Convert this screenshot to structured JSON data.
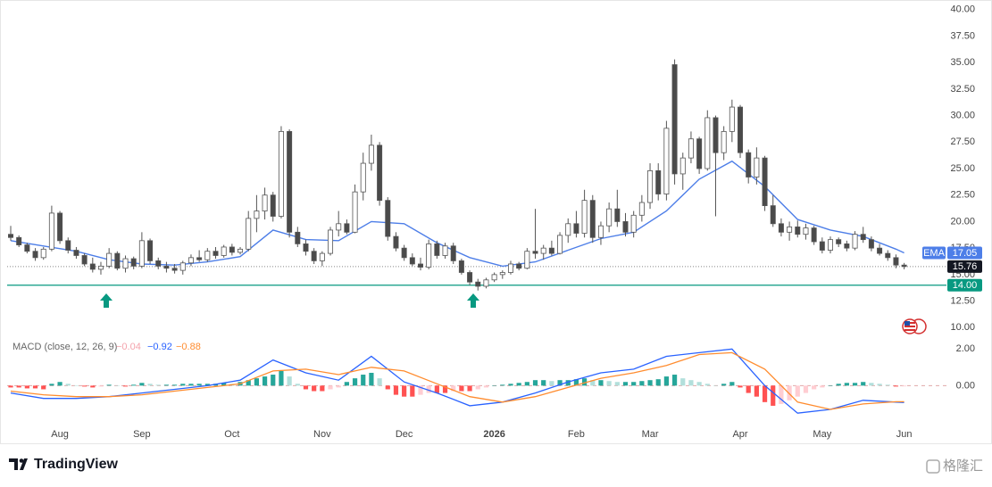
{
  "chart_data": {
    "type": "candlestick",
    "categories": [
      null,
      null,
      null,
      null,
      null,
      null,
      "Aug",
      null,
      null,
      null,
      null,
      null,
      null,
      null,
      null,
      null,
      "Sep",
      null,
      null,
      null,
      null,
      null,
      null,
      null,
      null,
      null,
      null,
      "Oct",
      null,
      null,
      null,
      null,
      null,
      null,
      null,
      null,
      null,
      null,
      "Nov",
      null,
      null,
      null,
      null,
      null,
      null,
      null,
      null,
      null,
      "Dec",
      null,
      null,
      null,
      null,
      null,
      null,
      null,
      null,
      null,
      null,
      "2026",
      null,
      null,
      null,
      null,
      null,
      null,
      null,
      null,
      null,
      "Feb",
      null,
      null,
      null,
      null,
      null,
      null,
      null,
      null,
      "Mar",
      null,
      null,
      null,
      null,
      null,
      null,
      null,
      null,
      null,
      null,
      "Apr",
      null,
      null,
      null,
      null,
      null,
      null,
      null,
      null,
      null,
      "May",
      null,
      null,
      null,
      null,
      null,
      null,
      null,
      null,
      null,
      "Jun"
    ],
    "ohlc": [
      [
        18.8,
        19.6,
        18.2,
        18.5
      ],
      [
        18.5,
        18.7,
        17.6,
        17.8
      ],
      [
        17.8,
        18.0,
        17.0,
        17.2
      ],
      [
        17.2,
        17.5,
        16.3,
        16.6
      ],
      [
        16.6,
        17.6,
        16.4,
        17.4
      ],
      [
        17.4,
        21.5,
        17.2,
        20.8
      ],
      [
        20.8,
        21.0,
        17.9,
        18.2
      ],
      [
        18.2,
        18.5,
        17.0,
        17.3
      ],
      [
        17.3,
        17.6,
        16.5,
        16.8
      ],
      [
        16.8,
        17.0,
        15.8,
        16.0
      ],
      [
        16.0,
        16.6,
        15.2,
        15.5
      ],
      [
        15.5,
        16.2,
        15.0,
        15.8
      ],
      [
        15.8,
        17.5,
        15.6,
        17.0
      ],
      [
        17.0,
        17.2,
        15.4,
        15.6
      ],
      [
        15.6,
        16.8,
        15.2,
        16.5
      ],
      [
        16.5,
        16.7,
        15.5,
        15.8
      ],
      [
        15.8,
        19.0,
        15.6,
        18.2
      ],
      [
        18.2,
        18.4,
        16.0,
        16.3
      ],
      [
        16.3,
        16.6,
        15.5,
        15.8
      ],
      [
        15.8,
        16.2,
        15.2,
        15.6
      ],
      [
        15.6,
        16.0,
        15.1,
        15.4
      ],
      [
        15.4,
        16.3,
        15.0,
        16.1
      ],
      [
        16.1,
        16.9,
        15.8,
        16.6
      ],
      [
        16.6,
        17.3,
        16.2,
        16.4
      ],
      [
        16.4,
        17.5,
        16.2,
        17.2
      ],
      [
        17.2,
        17.6,
        16.5,
        16.8
      ],
      [
        16.8,
        17.8,
        16.6,
        17.6
      ],
      [
        17.6,
        17.9,
        16.8,
        17.1
      ],
      [
        17.1,
        17.6,
        16.9,
        17.4
      ],
      [
        17.4,
        21.0,
        17.2,
        20.3
      ],
      [
        20.3,
        22.5,
        19.0,
        21.0
      ],
      [
        21.0,
        23.2,
        20.2,
        22.5
      ],
      [
        22.5,
        22.8,
        20.0,
        20.5
      ],
      [
        20.5,
        29.0,
        20.3,
        28.5
      ],
      [
        28.5,
        28.7,
        18.5,
        19.0
      ],
      [
        19.0,
        19.5,
        17.6,
        17.9
      ],
      [
        17.9,
        18.3,
        16.8,
        17.2
      ],
      [
        17.2,
        17.5,
        16.0,
        16.3
      ],
      [
        16.3,
        17.2,
        15.8,
        17.0
      ],
      [
        17.0,
        19.5,
        16.8,
        19.2
      ],
      [
        19.2,
        21.0,
        18.6,
        19.8
      ],
      [
        19.8,
        20.2,
        18.8,
        19.0
      ],
      [
        19.0,
        23.5,
        18.9,
        22.8
      ],
      [
        22.8,
        26.5,
        22.0,
        25.5
      ],
      [
        25.5,
        28.2,
        24.8,
        27.2
      ],
      [
        27.2,
        27.5,
        21.5,
        22.0
      ],
      [
        22.0,
        22.3,
        18.2,
        18.6
      ],
      [
        18.6,
        19.0,
        17.2,
        17.5
      ],
      [
        17.5,
        17.8,
        16.3,
        16.6
      ],
      [
        16.6,
        17.0,
        15.8,
        16.0
      ],
      [
        16.0,
        16.6,
        15.4,
        15.7
      ],
      [
        15.7,
        18.3,
        15.5,
        17.9
      ],
      [
        17.9,
        18.2,
        16.5,
        16.8
      ],
      [
        16.8,
        18.0,
        16.5,
        17.7
      ],
      [
        17.7,
        18.0,
        16.0,
        16.3
      ],
      [
        16.3,
        16.5,
        15.0,
        15.2
      ],
      [
        15.2,
        15.4,
        14.0,
        14.3
      ],
      [
        14.3,
        14.6,
        13.5,
        13.9
      ],
      [
        13.9,
        14.7,
        13.7,
        14.5
      ],
      [
        14.5,
        15.2,
        14.3,
        15.0
      ],
      [
        15.0,
        15.4,
        14.6,
        15.2
      ],
      [
        15.2,
        16.3,
        15.0,
        16.0
      ],
      [
        16.0,
        16.2,
        15.4,
        15.6
      ],
      [
        15.6,
        17.5,
        15.5,
        17.2
      ],
      [
        17.2,
        21.2,
        16.5,
        17.0
      ],
      [
        17.0,
        17.8,
        16.4,
        17.5
      ],
      [
        17.5,
        18.2,
        16.8,
        17.0
      ],
      [
        17.0,
        19.0,
        16.9,
        18.7
      ],
      [
        18.7,
        20.3,
        18.0,
        19.8
      ],
      [
        19.8,
        21.0,
        18.5,
        18.9
      ],
      [
        18.9,
        23.0,
        18.5,
        22.0
      ],
      [
        22.0,
        22.5,
        18.0,
        18.5
      ],
      [
        18.5,
        20.0,
        17.8,
        19.6
      ],
      [
        19.6,
        21.8,
        19.0,
        21.2
      ],
      [
        21.2,
        23.0,
        19.5,
        20.0
      ],
      [
        20.0,
        20.8,
        18.6,
        19.0
      ],
      [
        19.0,
        21.0,
        18.5,
        20.6
      ],
      [
        20.6,
        22.5,
        20.0,
        21.8
      ],
      [
        21.8,
        25.5,
        21.2,
        24.8
      ],
      [
        24.8,
        25.5,
        22.0,
        22.6
      ],
      [
        22.6,
        29.5,
        22.0,
        28.8
      ],
      [
        34.8,
        35.3,
        23.5,
        24.5
      ],
      [
        24.5,
        26.5,
        23.0,
        26.0
      ],
      [
        26.0,
        28.5,
        25.5,
        27.8
      ],
      [
        27.8,
        28.0,
        24.5,
        25.0
      ],
      [
        25.0,
        30.5,
        24.8,
        29.8
      ],
      [
        29.8,
        30.0,
        20.5,
        26.5
      ],
      [
        26.5,
        29.0,
        25.8,
        28.5
      ],
      [
        28.5,
        31.5,
        27.5,
        30.8
      ],
      [
        30.8,
        31.0,
        26.0,
        26.5
      ],
      [
        26.5,
        26.8,
        23.6,
        24.2
      ],
      [
        24.2,
        27.0,
        23.5,
        26.0
      ],
      [
        26.0,
        26.2,
        21.0,
        21.5
      ],
      [
        21.5,
        22.5,
        19.5,
        19.8
      ],
      [
        19.8,
        20.3,
        18.6,
        19.0
      ],
      [
        19.0,
        20.0,
        18.2,
        19.5
      ],
      [
        19.5,
        20.1,
        18.5,
        18.8
      ],
      [
        18.8,
        19.8,
        18.3,
        19.4
      ],
      [
        19.4,
        19.6,
        17.8,
        18.1
      ],
      [
        18.1,
        18.5,
        17.0,
        17.3
      ],
      [
        17.3,
        18.6,
        17.0,
        18.3
      ],
      [
        18.3,
        18.5,
        17.6,
        17.9
      ],
      [
        17.9,
        18.2,
        17.2,
        17.5
      ],
      [
        17.5,
        19.1,
        17.3,
        18.8
      ],
      [
        18.8,
        19.5,
        18.0,
        18.3
      ],
      [
        18.3,
        18.6,
        17.2,
        17.5
      ],
      [
        17.5,
        17.9,
        16.8,
        17.0
      ],
      [
        17.0,
        17.3,
        16.3,
        16.6
      ],
      [
        16.6,
        16.9,
        15.6,
        15.9
      ],
      [
        15.9,
        16.1,
        15.5,
        15.76
      ]
    ],
    "up_color": "#ffffff",
    "down_color": "#4a4a4a",
    "wick_color": "#555555",
    "ylim": [
      9.1,
      40.9
    ],
    "yticks": [
      {
        "value": 10,
        "label": "10.00"
      },
      {
        "value": 12.5,
        "label": "12.50"
      },
      {
        "value": 15,
        "label": "15.00"
      },
      {
        "value": 17.5,
        "label": "17.50"
      },
      {
        "value": 20,
        "label": "20.00"
      },
      {
        "value": 22.5,
        "label": "22.50"
      },
      {
        "value": 25,
        "label": "25.00"
      },
      {
        "value": 27.5,
        "label": "27.50"
      },
      {
        "value": 30,
        "label": "30.00"
      },
      {
        "value": 32.5,
        "label": "32.50"
      },
      {
        "value": 35,
        "label": "35.00"
      },
      {
        "value": 37.5,
        "label": "37.50"
      },
      {
        "value": 40,
        "label": "40.00"
      }
    ],
    "ema": {
      "name": "EMA",
      "color": "#4d7ee8",
      "x": [
        0,
        4,
        8,
        12,
        16,
        20,
        24,
        28,
        32,
        36,
        40,
        44,
        48,
        52,
        56,
        60,
        64,
        68,
        72,
        76,
        80,
        84,
        88,
        92,
        96,
        100,
        104,
        108,
        109
      ],
      "values": [
        18.2,
        17.7,
        17.2,
        16.4,
        16.0,
        15.9,
        16.2,
        16.7,
        19.2,
        18.3,
        18.2,
        20.0,
        19.8,
        18.0,
        16.6,
        15.8,
        16.2,
        17.3,
        18.4,
        19.0,
        21.0,
        24.0,
        25.7,
        23.3,
        20.2,
        19.2,
        18.6,
        17.4,
        17.05
      ]
    },
    "hline": {
      "value": 14,
      "label": "14.00",
      "color": "#089981"
    },
    "macd": {
      "title": "MACD (close, 12, 26, 9)",
      "ylim": [
        -3.1,
        2.55
      ],
      "yticks": [
        {
          "value": 0,
          "label": "0.00"
        },
        {
          "value": 2,
          "label": "2.00"
        }
      ],
      "histogram": {
        "values": [
          -0.1,
          -0.1,
          -0.15,
          -0.15,
          -0.2,
          0.1,
          0.2,
          0.1,
          0.0,
          -0.05,
          -0.1,
          -0.05,
          0.05,
          0.0,
          -0.05,
          0.05,
          0.15,
          0.1,
          0.05,
          0.05,
          0.05,
          0.1,
          0.1,
          0.1,
          0.1,
          0.1,
          0.15,
          0.1,
          0.2,
          0.3,
          0.4,
          0.5,
          0.6,
          0.8,
          0.5,
          0.1,
          -0.2,
          -0.3,
          -0.3,
          -0.2,
          -0.1,
          0.2,
          0.4,
          0.6,
          0.7,
          0.4,
          -0.2,
          -0.5,
          -0.6,
          -0.6,
          -0.5,
          -0.4,
          -0.4,
          -0.4,
          -0.3,
          -0.3,
          -0.3,
          -0.2,
          -0.1,
          0.0,
          0.05,
          0.1,
          0.15,
          0.2,
          0.3,
          0.3,
          0.25,
          0.3,
          0.3,
          0.35,
          0.4,
          0.3,
          0.3,
          0.25,
          0.2,
          0.2,
          0.2,
          0.25,
          0.3,
          0.35,
          0.5,
          0.6,
          0.4,
          0.3,
          0.2,
          0.1,
          0.0,
          0.1,
          0.2,
          -0.1,
          -0.4,
          -0.6,
          -0.9,
          -1.1,
          -1.0,
          -0.8,
          -0.6,
          -0.4,
          -0.2,
          -0.1,
          0.0,
          0.1,
          0.15,
          0.15,
          0.2,
          0.15,
          0.1,
          0.05,
          -0.05,
          -0.04
        ],
        "label": "−0.04",
        "colors": {
          "up_rising": "#26a69a",
          "up_falling": "#b2dfdb",
          "down_falling": "#ff5252",
          "down_rising": "#ffcdd2"
        }
      },
      "x": [
        0,
        4,
        8,
        12,
        16,
        20,
        24,
        28,
        32,
        36,
        40,
        44,
        48,
        52,
        56,
        60,
        64,
        68,
        72,
        76,
        80,
        84,
        88,
        92,
        96,
        100,
        104,
        108,
        109
      ],
      "macd_line": {
        "color": "#2962ff",
        "label": "−0.92",
        "values": [
          -0.4,
          -0.7,
          -0.7,
          -0.6,
          -0.4,
          -0.2,
          0.0,
          0.3,
          1.4,
          0.7,
          0.3,
          1.6,
          0.2,
          -0.4,
          -1.1,
          -0.9,
          -0.4,
          0.2,
          0.7,
          0.9,
          1.6,
          1.8,
          2.0,
          0.0,
          -1.5,
          -1.3,
          -0.8,
          -0.9,
          -0.92
        ]
      },
      "signal_line": {
        "color": "#ff8c2f",
        "label": "−0.88",
        "values": [
          -0.3,
          -0.5,
          -0.6,
          -0.6,
          -0.5,
          -0.3,
          -0.1,
          0.1,
          0.8,
          0.9,
          0.6,
          1.0,
          0.8,
          0.1,
          -0.6,
          -0.9,
          -0.6,
          -0.1,
          0.4,
          0.7,
          1.1,
          1.7,
          1.8,
          0.9,
          -0.9,
          -1.3,
          -1.0,
          -0.88,
          -0.88
        ]
      }
    },
    "brand": "TradingView",
    "watermark": "格隆汇"
  }
}
